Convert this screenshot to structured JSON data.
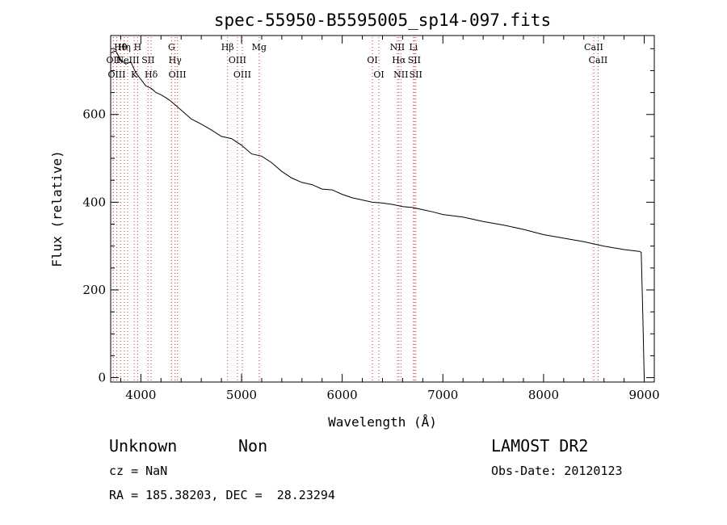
{
  "chart_data": {
    "type": "line",
    "title": "spec-55950-B5595005_sp14-097.fits",
    "xlabel": "Wavelength (Å)",
    "ylabel": "Flux (relative)",
    "xlim": [
      3700,
      9100
    ],
    "ylim": [
      -10,
      780
    ],
    "xticks": [
      4000,
      5000,
      6000,
      7000,
      8000,
      9000
    ],
    "yticks": [
      0,
      200,
      400,
      600
    ],
    "grid": false,
    "series": [
      {
        "color": "#000000",
        "x": [
          3700,
          3750,
          3800,
          3850,
          3900,
          3950,
          4000,
          4050,
          4100,
          4150,
          4200,
          4250,
          4300,
          4350,
          4400,
          4450,
          4500,
          4600,
          4700,
          4800,
          4900,
          5000,
          5100,
          5200,
          5300,
          5400,
          5500,
          5600,
          5700,
          5800,
          5900,
          6000,
          6100,
          6200,
          6300,
          6400,
          6500,
          6600,
          6700,
          6800,
          6900,
          7000,
          7200,
          7400,
          7600,
          7800,
          8000,
          8200,
          8400,
          8600,
          8800,
          8950,
          8970,
          8985,
          9000
        ],
        "y": [
          740,
          745,
          725,
          715,
          720,
          695,
          680,
          665,
          660,
          650,
          645,
          638,
          630,
          620,
          610,
          600,
          590,
          578,
          565,
          550,
          545,
          530,
          510,
          505,
          490,
          470,
          455,
          445,
          440,
          430,
          428,
          418,
          410,
          405,
          400,
          398,
          395,
          390,
          388,
          383,
          378,
          372,
          366,
          356,
          348,
          338,
          326,
          318,
          310,
          300,
          292,
          288,
          286,
          150,
          0
        ]
      }
    ],
    "emission_lines": [
      {
        "label": "Hθ",
        "wavelength": 3798
      },
      {
        "label": "OII",
        "wavelength": 3727
      },
      {
        "label": "OIII",
        "wavelength": 3760
      },
      {
        "label": "Hη",
        "wavelength": 3835
      },
      {
        "label": "NeIII",
        "wavelength": 3869
      },
      {
        "label": "K",
        "wavelength": 3934
      },
      {
        "label": "H",
        "wavelength": 3968
      },
      {
        "label": "SII",
        "wavelength": 4072
      },
      {
        "label": "Hδ",
        "wavelength": 4102
      },
      {
        "label": "G",
        "wavelength": 4305
      },
      {
        "label": "Hγ",
        "wavelength": 4340
      },
      {
        "label": "OIII",
        "wavelength": 4363
      },
      {
        "label": "Hβ",
        "wavelength": 4861
      },
      {
        "label": "OIII",
        "wavelength": 4959
      },
      {
        "label": "OIII",
        "wavelength": 5007
      },
      {
        "label": "Mg",
        "wavelength": 5175
      },
      {
        "label": "OI",
        "wavelength": 6300
      },
      {
        "label": "OI",
        "wavelength": 6364
      },
      {
        "label": "NII",
        "wavelength": 6548
      },
      {
        "label": "Hα",
        "wavelength": 6563
      },
      {
        "label": "NII",
        "wavelength": 6583
      },
      {
        "label": "Li",
        "wavelength": 6708
      },
      {
        "label": "SII",
        "wavelength": 6716
      },
      {
        "label": "SII",
        "wavelength": 6731
      },
      {
        "label": "CaII",
        "wavelength": 8498
      },
      {
        "label": "CaII",
        "wavelength": 8542
      }
    ]
  },
  "info": {
    "class": "Unknown",
    "subclass": "Non",
    "survey": "LAMOST DR2",
    "cz": "cz = NaN",
    "obs_date": "Obs-Date: 20120123",
    "coords": "RA = 185.38203, DEC =  28.23294"
  }
}
